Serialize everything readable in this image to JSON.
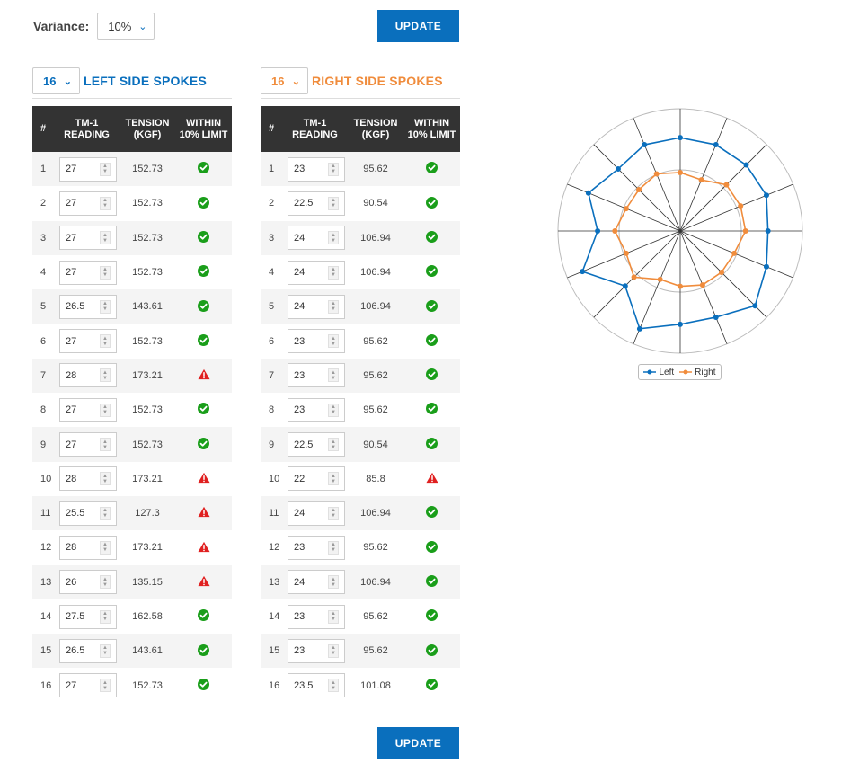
{
  "variance": {
    "label": "Variance:",
    "value": "10%"
  },
  "update_label": "UPDATE",
  "table_headers": {
    "num": "#",
    "reading": "TM-1 READING",
    "tension": "TENSION (KGF)",
    "within": "WITHIN 10% LIMIT"
  },
  "left": {
    "count": "16",
    "title": "LEFT SIDE SPOKES",
    "rows": [
      {
        "n": "1",
        "reading": "27",
        "tension": "152.73",
        "ok": true
      },
      {
        "n": "2",
        "reading": "27",
        "tension": "152.73",
        "ok": true
      },
      {
        "n": "3",
        "reading": "27",
        "tension": "152.73",
        "ok": true
      },
      {
        "n": "4",
        "reading": "27",
        "tension": "152.73",
        "ok": true
      },
      {
        "n": "5",
        "reading": "26.5",
        "tension": "143.61",
        "ok": true
      },
      {
        "n": "6",
        "reading": "27",
        "tension": "152.73",
        "ok": true
      },
      {
        "n": "7",
        "reading": "28",
        "tension": "173.21",
        "ok": false
      },
      {
        "n": "8",
        "reading": "27",
        "tension": "152.73",
        "ok": true
      },
      {
        "n": "9",
        "reading": "27",
        "tension": "152.73",
        "ok": true
      },
      {
        "n": "10",
        "reading": "28",
        "tension": "173.21",
        "ok": false
      },
      {
        "n": "11",
        "reading": "25.5",
        "tension": "127.3",
        "ok": false
      },
      {
        "n": "12",
        "reading": "28",
        "tension": "173.21",
        "ok": false
      },
      {
        "n": "13",
        "reading": "26",
        "tension": "135.15",
        "ok": false
      },
      {
        "n": "14",
        "reading": "27.5",
        "tension": "162.58",
        "ok": true
      },
      {
        "n": "15",
        "reading": "26.5",
        "tension": "143.61",
        "ok": true
      },
      {
        "n": "16",
        "reading": "27",
        "tension": "152.73",
        "ok": true
      }
    ]
  },
  "right": {
    "count": "16",
    "title": "RIGHT SIDE SPOKES",
    "rows": [
      {
        "n": "1",
        "reading": "23",
        "tension": "95.62",
        "ok": true
      },
      {
        "n": "2",
        "reading": "22.5",
        "tension": "90.54",
        "ok": true
      },
      {
        "n": "3",
        "reading": "24",
        "tension": "106.94",
        "ok": true
      },
      {
        "n": "4",
        "reading": "24",
        "tension": "106.94",
        "ok": true
      },
      {
        "n": "5",
        "reading": "24",
        "tension": "106.94",
        "ok": true
      },
      {
        "n": "6",
        "reading": "23",
        "tension": "95.62",
        "ok": true
      },
      {
        "n": "7",
        "reading": "23",
        "tension": "95.62",
        "ok": true
      },
      {
        "n": "8",
        "reading": "23",
        "tension": "95.62",
        "ok": true
      },
      {
        "n": "9",
        "reading": "22.5",
        "tension": "90.54",
        "ok": true
      },
      {
        "n": "10",
        "reading": "22",
        "tension": "85.8",
        "ok": false
      },
      {
        "n": "11",
        "reading": "24",
        "tension": "106.94",
        "ok": true
      },
      {
        "n": "12",
        "reading": "23",
        "tension": "95.62",
        "ok": true
      },
      {
        "n": "13",
        "reading": "24",
        "tension": "106.94",
        "ok": true
      },
      {
        "n": "14",
        "reading": "23",
        "tension": "95.62",
        "ok": true
      },
      {
        "n": "15",
        "reading": "23",
        "tension": "95.62",
        "ok": true
      },
      {
        "n": "16",
        "reading": "23.5",
        "tension": "101.08",
        "ok": true
      }
    ]
  },
  "colors": {
    "left": "#0a6fbd",
    "right": "#f08c3c",
    "ok": "#1a9e1a",
    "warn": "#e02020"
  },
  "chart_data": {
    "type": "radar",
    "categories": [
      "1",
      "2",
      "3",
      "4",
      "5",
      "6",
      "7",
      "8",
      "9",
      "10",
      "11",
      "12",
      "13",
      "14",
      "15",
      "16"
    ],
    "series": [
      {
        "name": "Left",
        "values": [
          152.73,
          152.73,
          152.73,
          152.73,
          143.61,
          152.73,
          173.21,
          152.73,
          152.73,
          173.21,
          127.3,
          173.21,
          135.15,
          162.58,
          143.61,
          152.73
        ]
      },
      {
        "name": "Right",
        "values": [
          95.62,
          90.54,
          106.94,
          106.94,
          106.94,
          95.62,
          95.62,
          95.62,
          90.54,
          85.8,
          106.94,
          95.62,
          106.94,
          95.62,
          95.62,
          101.08
        ]
      }
    ],
    "rlim": [
      0,
      200
    ],
    "legend": "bottom"
  }
}
